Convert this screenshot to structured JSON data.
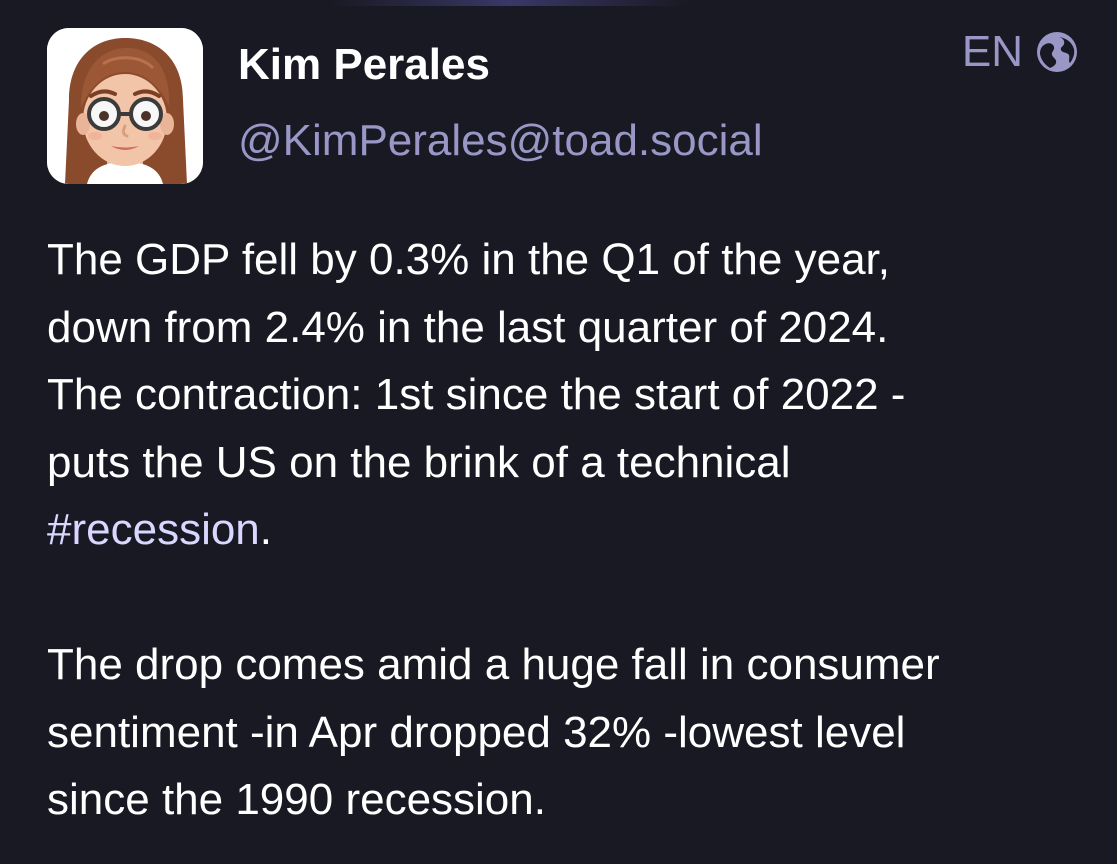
{
  "author": {
    "display_name": "Kim Perales",
    "handle": "@KimPerales@toad.social",
    "avatar_icon": "memoji-avatar-icon"
  },
  "meta": {
    "language": "EN",
    "visibility_icon": "globe-icon"
  },
  "status": {
    "paragraph1": {
      "line1": "The GDP fell by 0.3% in the Q1 of the year,",
      "line2": "down from 2.4% in the last quarter of 2024.",
      "line3": "The contraction: 1st since the start of 2022 -",
      "line4": "puts the US on the brink of a technical",
      "hashtag": "#recession",
      "trailing": "."
    },
    "paragraph2": {
      "line1": "The drop comes amid a huge fall in consumer",
      "line2": "sentiment -in Apr dropped 32% -lowest level",
      "line3": "since the 1990 recession."
    }
  },
  "colors": {
    "background": "#191923",
    "text_primary": "#ffffff",
    "text_secondary": "#9a97c6",
    "hashtag": "#d9d6ff"
  }
}
